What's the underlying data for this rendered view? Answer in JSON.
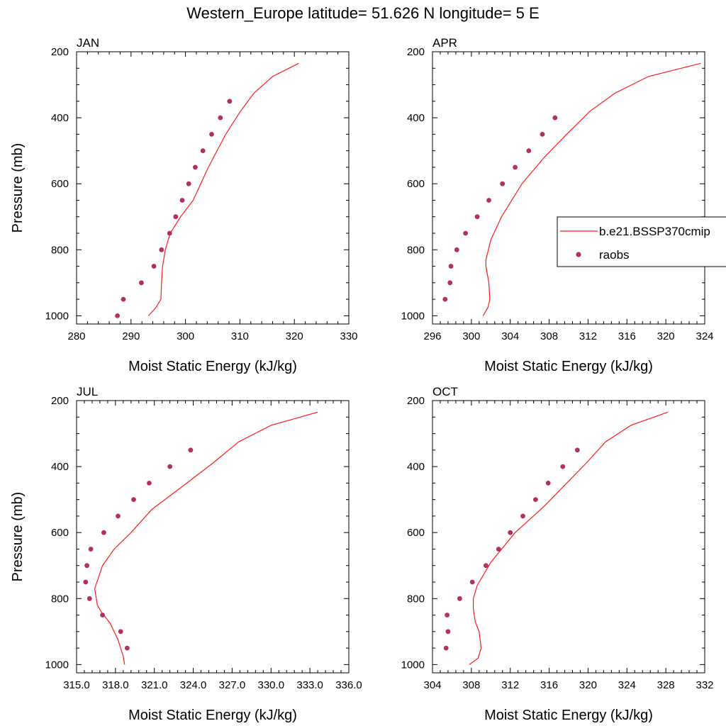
{
  "figure_title": "Western_Europe  latitude= 51.626 N longitude= 5 E",
  "colors": {
    "model": "#ff1a1a",
    "obs": "#b03060",
    "axis": "#000000"
  },
  "legend": {
    "model_label": "b.e21.BSSP370cmip",
    "obs_label": "raobs",
    "placement": "right"
  },
  "chart_data": [
    {
      "type": "line",
      "panel": "JAN",
      "xlabel": "Moist Static Energy (kJ/kg)",
      "ylabel": "Pressure (mb)",
      "xlim": [
        280,
        330
      ],
      "ylim": [
        1000,
        200
      ],
      "xticks": [
        "280",
        "290",
        "300",
        "310",
        "320",
        "330"
      ],
      "yticks": [
        "200",
        "400",
        "600",
        "800",
        "1000"
      ],
      "series": [
        {
          "name": "b.e21.BSSP370cmip",
          "kind": "line",
          "x": [
            293.2,
            294.6,
            295.5,
            295.6,
            295.8,
            296.3,
            297.2,
            299.1,
            301.4,
            304.2,
            307.4,
            310.1,
            312.6,
            316.0,
            320.8
          ],
          "y": [
            1000,
            975,
            950,
            900,
            850,
            800,
            750,
            700,
            650,
            550,
            450,
            380,
            325,
            275,
            235
          ]
        },
        {
          "name": "raobs",
          "kind": "scatter",
          "x": [
            287.5,
            288.6,
            291.9,
            294.2,
            295.6,
            297.1,
            298.2,
            299.4,
            300.6,
            301.8,
            303.2,
            304.8,
            306.4,
            308.1
          ],
          "y": [
            1000,
            950,
            900,
            850,
            800,
            750,
            700,
            650,
            600,
            550,
            500,
            450,
            400,
            350
          ]
        }
      ]
    },
    {
      "type": "line",
      "panel": "APR",
      "xlabel": "Moist Static Energy (kJ/kg)",
      "ylabel": "",
      "xlim": [
        296,
        324
      ],
      "ylim": [
        1000,
        200
      ],
      "xticks": [
        "296",
        "300",
        "304",
        "308",
        "312",
        "316",
        "320",
        "324"
      ],
      "yticks": [
        "200",
        "400",
        "600",
        "800",
        "1000"
      ],
      "series": [
        {
          "name": "b.e21.BSSP370cmip",
          "kind": "line",
          "x": [
            301.2,
            301.7,
            301.9,
            301.8,
            301.5,
            301.5,
            302.0,
            303.1,
            305.2,
            307.5,
            309.8,
            312.2,
            314.8,
            318.2,
            323.6
          ],
          "y": [
            1000,
            975,
            950,
            900,
            850,
            830,
            770,
            700,
            600,
            520,
            450,
            380,
            325,
            275,
            235
          ]
        },
        {
          "name": "raobs",
          "kind": "scatter",
          "x": [
            297.3,
            297.8,
            297.9,
            298.5,
            299.4,
            300.6,
            301.8,
            303.2,
            304.5,
            305.9,
            307.3,
            308.6
          ],
          "y": [
            950,
            900,
            850,
            800,
            750,
            700,
            650,
            600,
            550,
            500,
            450,
            400
          ]
        }
      ]
    },
    {
      "type": "line",
      "panel": "JUL",
      "xlabel": "Moist Static Energy (kJ/kg)",
      "ylabel": "Pressure (mb)",
      "xlim": [
        315,
        336
      ],
      "ylim": [
        1000,
        200
      ],
      "xticks": [
        "315.0",
        "318.0",
        "321.0",
        "324.0",
        "327.0",
        "330.0",
        "333.0",
        "336.0"
      ],
      "yticks": [
        "200",
        "400",
        "600",
        "800",
        "1000"
      ],
      "series": [
        {
          "name": "b.e21.BSSP370cmip",
          "kind": "line",
          "x": [
            318.7,
            318.6,
            318.2,
            317.6,
            316.9,
            316.6,
            316.4,
            317.0,
            317.9,
            319.2,
            320.8,
            323.5,
            325.5,
            327.5,
            330.0,
            333.6
          ],
          "y": [
            1000,
            975,
            925,
            875,
            840,
            820,
            770,
            700,
            650,
            600,
            530,
            450,
            390,
            325,
            275,
            235
          ]
        },
        {
          "name": "raobs",
          "kind": "scatter",
          "x": [
            318.9,
            318.4,
            317.0,
            316.0,
            315.7,
            315.8,
            316.1,
            317.1,
            318.2,
            319.4,
            320.6,
            322.2,
            323.8
          ],
          "y": [
            950,
            900,
            850,
            800,
            750,
            700,
            650,
            600,
            550,
            500,
            450,
            400,
            350
          ]
        }
      ]
    },
    {
      "type": "line",
      "panel": "OCT",
      "xlabel": "Moist Static Energy (kJ/kg)",
      "ylabel": "",
      "xlim": [
        304,
        332
      ],
      "ylim": [
        1000,
        200
      ],
      "xticks": [
        "304",
        "308",
        "312",
        "316",
        "320",
        "324",
        "328",
        "332"
      ],
      "yticks": [
        "200",
        "400",
        "600",
        "800",
        "1000"
      ],
      "series": [
        {
          "name": "b.e21.BSSP370cmip",
          "kind": "line",
          "x": [
            307.8,
            308.7,
            309.0,
            308.8,
            308.4,
            308.2,
            308.2,
            308.6,
            310.0,
            312.5,
            315.5,
            317.8,
            319.8,
            321.8,
            324.4,
            328.2
          ],
          "y": [
            1000,
            980,
            950,
            900,
            870,
            830,
            800,
            760,
            690,
            600,
            520,
            450,
            390,
            325,
            275,
            235
          ]
        },
        {
          "name": "raobs",
          "kind": "scatter",
          "x": [
            305.4,
            305.6,
            305.5,
            306.8,
            308.1,
            309.5,
            310.8,
            312.0,
            313.3,
            314.6,
            315.9,
            317.4,
            318.9
          ],
          "y": [
            950,
            900,
            850,
            800,
            750,
            700,
            650,
            600,
            550,
            500,
            450,
            400,
            350
          ]
        }
      ]
    }
  ]
}
